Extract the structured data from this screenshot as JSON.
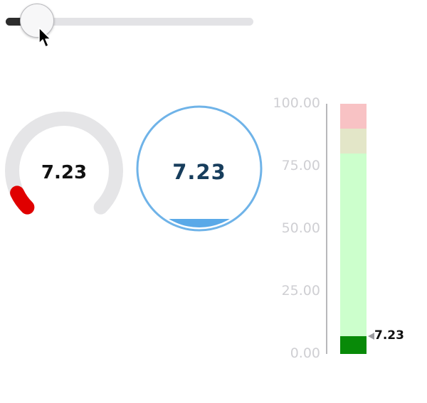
{
  "slider": {
    "min": 0,
    "max": 100,
    "value": 7.23,
    "fill_color": "#2d2d2d",
    "track_color": "#e3e3e6"
  },
  "arc_gauge": {
    "value_label": "7.23",
    "value": 7.23,
    "min": 0,
    "max": 100,
    "track_color": "#e5e5e7",
    "indicator_color": "#e00000"
  },
  "tank_gauge": {
    "value_label": "7.23",
    "value": 7.23,
    "min": 0,
    "max": 100,
    "ring_color": "#6fb3e8",
    "fill_color": "#5aa9e8"
  },
  "linear_gauge": {
    "ticks": [
      "100.00",
      "75.00",
      "50.00",
      "25.00",
      "0.00"
    ],
    "value": 7.23,
    "value_label": "7.23",
    "min": 0,
    "max": 100,
    "bands": [
      {
        "from": 90,
        "to": 100,
        "color": "#f8c2c4"
      },
      {
        "from": 80,
        "to": 90,
        "color": "#e3e6c8"
      },
      {
        "from": 0,
        "to": 80,
        "color": "#ccffcc"
      }
    ],
    "value_color": "#088a08",
    "pointer_icon": "triangle-left-icon"
  },
  "cursor_icon": "mouse-pointer-icon"
}
